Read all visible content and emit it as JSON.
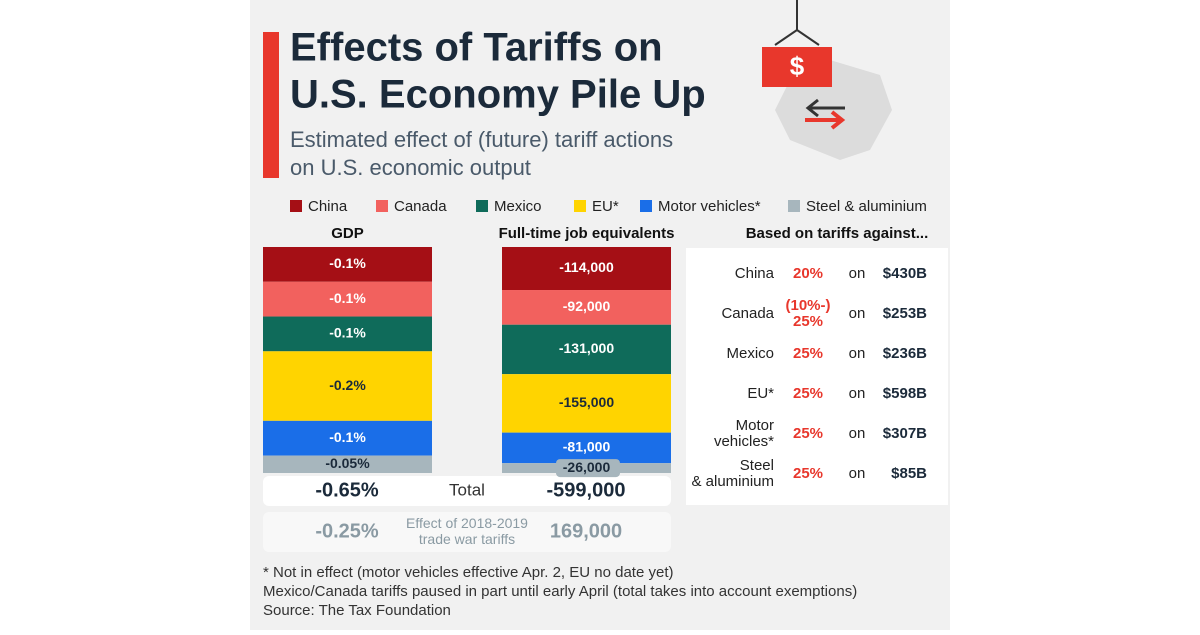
{
  "title_lines": [
    "Effects of Tariffs on",
    "U.S. Economy Pile Up"
  ],
  "subtitle_lines": [
    "Estimated effect of (future) tariff actions",
    "on U.S. economic output"
  ],
  "legend": [
    {
      "name": "China",
      "color": "#a50f15"
    },
    {
      "name": "Canada",
      "color": "#f2615e"
    },
    {
      "name": "Mexico",
      "color": "#0f6b5a"
    },
    {
      "name": "EU*",
      "color": "#ffd400"
    },
    {
      "name": "Motor vehicles*",
      "color": "#1a6ee8"
    },
    {
      "name": "Steel & aluminium",
      "color": "#a7b6bd"
    }
  ],
  "chart_data": [
    {
      "type": "stacked-column",
      "title": "GDP",
      "values": [
        -0.1,
        -0.1,
        -0.1,
        -0.2,
        -0.1,
        -0.05
      ],
      "value_labels": [
        "-0.1%",
        "-0.1%",
        "-0.1%",
        "-0.2%",
        "-0.1%",
        "-0.05%"
      ]
    },
    {
      "type": "stacked-column",
      "title": "Full-time job equivalents",
      "values": [
        -114000,
        -92000,
        -131000,
        -155000,
        -81000,
        -26000
      ],
      "value_labels": [
        "-114,000",
        "-92,000",
        "-131,000",
        "-155,000",
        "-81,000",
        "-26,000"
      ]
    }
  ],
  "summary": {
    "rows": [
      [
        "-0.65%",
        "Total",
        "-599,000"
      ],
      [
        "-0.25%",
        "Effect of 2018-2019 trade war tariffs",
        "169,000"
      ]
    ]
  },
  "tariffs": {
    "title": "Based on tariffs against...",
    "rows": [
      [
        "China",
        "20%",
        "on",
        "$430B"
      ],
      [
        "Canada",
        "(10%-) 25%",
        "on",
        "$253B"
      ],
      [
        "Mexico",
        "25%",
        "on",
        "$236B"
      ],
      [
        "EU*",
        "25%",
        "on",
        "$598B"
      ],
      [
        "Motor vehicles*",
        "25%",
        "on",
        "$307B"
      ],
      [
        "Steel & aluminium",
        "25%",
        "on",
        "$85B"
      ]
    ]
  },
  "footnotes": [
    "* Not in effect (motor vehicles effective Apr. 2, EU no date yet)",
    "Mexico/Canada tariffs paused in part until early April (total takes into account exemptions)",
    "Source: The Tax Foundation"
  ]
}
